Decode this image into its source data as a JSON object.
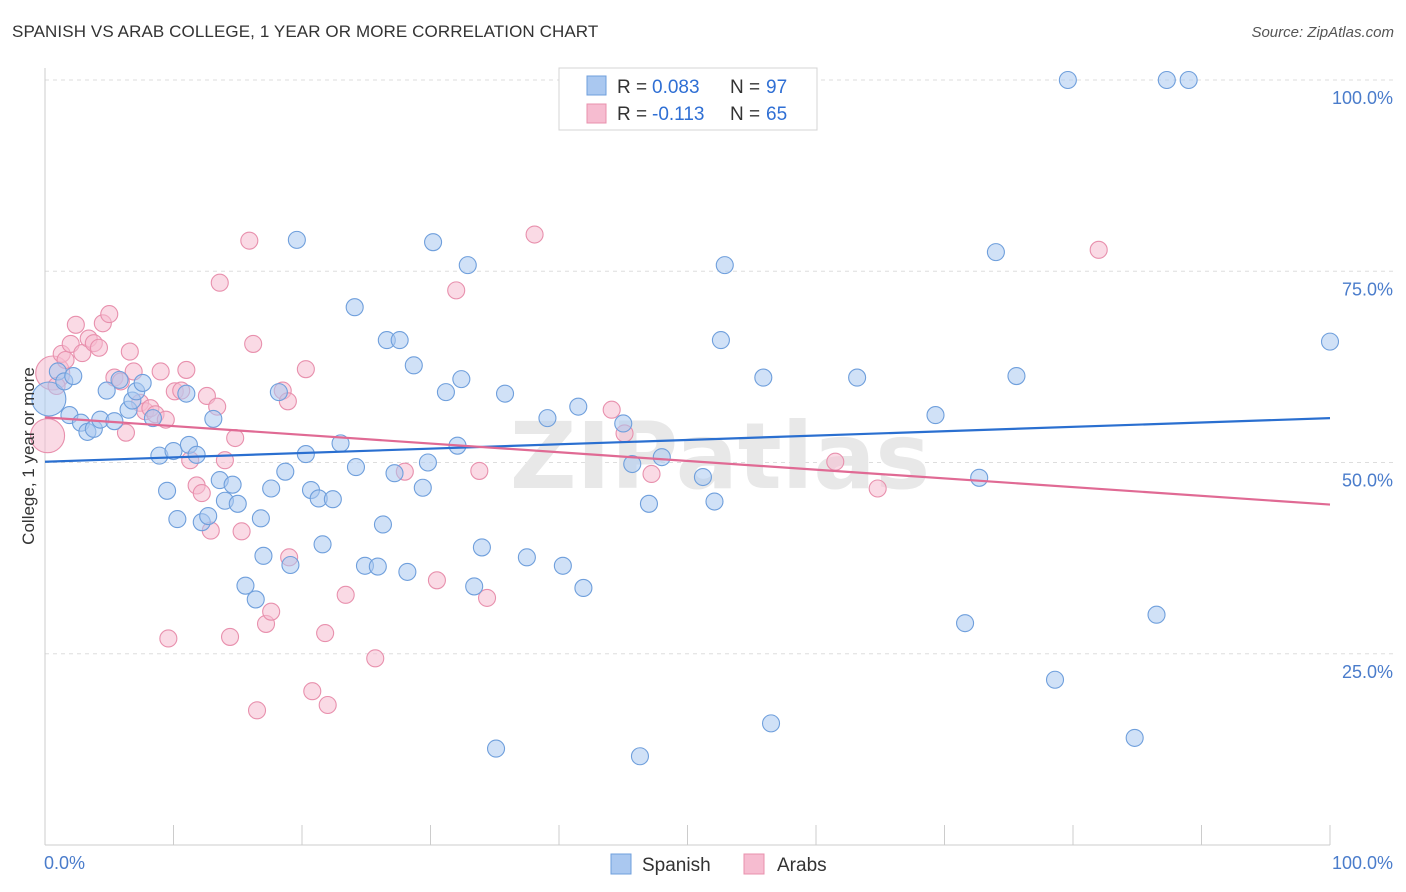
{
  "header": {
    "title": "SPANISH VS ARAB COLLEGE, 1 YEAR OR MORE CORRELATION CHART",
    "source": "Source: ZipAtlas.com"
  },
  "watermark": "ZIPatlas",
  "colors": {
    "spanish_fill": "#aac8f0",
    "spanish_stroke": "#6f9fdc",
    "spanish_line": "#2a6fd0",
    "arabs_fill": "#f6bcd0",
    "arabs_stroke": "#e890ad",
    "arabs_line": "#e06a94",
    "grid": "#dddddd",
    "label": "#4a7ccb"
  },
  "legend": {
    "r_label": "R =",
    "n_label": "N =",
    "rows": [
      {
        "name": "Spanish",
        "r": "0.083",
        "n": "97"
      },
      {
        "name": "Arabs",
        "r": "-0.113",
        "n": "65"
      }
    ]
  },
  "chart_data": {
    "type": "scatter",
    "title": "SPANISH VS ARAB COLLEGE, 1 YEAR OR MORE CORRELATION CHART",
    "xlabel": "",
    "ylabel": "College, 1 year or more",
    "xlim": [
      0,
      100
    ],
    "ylim": [
      0,
      100
    ],
    "x_tick_labels": [
      "0.0%",
      "100.0%"
    ],
    "y_tick_labels": [
      "25.0%",
      "50.0%",
      "75.0%",
      "100.0%"
    ],
    "y_ticks": [
      25,
      50,
      75,
      100
    ],
    "grid": true,
    "legend_position": "top-center",
    "series": [
      {
        "name": "Spanish",
        "r": 0.083,
        "n": 97,
        "trend": {
          "x": [
            0,
            100
          ],
          "y": [
            50.1,
            55.8
          ]
        },
        "points": [
          [
            0.3,
            58.3
          ],
          [
            1.0,
            61.9
          ],
          [
            1.5,
            60.6
          ],
          [
            1.9,
            56.2
          ],
          [
            2.2,
            61.3
          ],
          [
            2.8,
            55.2
          ],
          [
            3.3,
            54.0
          ],
          [
            3.8,
            54.4
          ],
          [
            4.3,
            55.6
          ],
          [
            4.8,
            59.4
          ],
          [
            5.4,
            55.4
          ],
          [
            5.8,
            60.8
          ],
          [
            6.5,
            56.9
          ],
          [
            6.8,
            58.1
          ],
          [
            7.1,
            59.3
          ],
          [
            7.6,
            60.4
          ],
          [
            8.4,
            55.8
          ],
          [
            8.9,
            50.9
          ],
          [
            9.5,
            46.3
          ],
          [
            10.0,
            51.5
          ],
          [
            10.3,
            42.6
          ],
          [
            11.0,
            59.0
          ],
          [
            11.2,
            52.3
          ],
          [
            11.8,
            51.0
          ],
          [
            12.2,
            42.2
          ],
          [
            12.7,
            43.0
          ],
          [
            13.1,
            55.7
          ],
          [
            13.6,
            47.7
          ],
          [
            14.0,
            45.0
          ],
          [
            14.6,
            47.1
          ],
          [
            15.0,
            44.6
          ],
          [
            15.6,
            33.9
          ],
          [
            16.4,
            32.1
          ],
          [
            16.8,
            42.7
          ],
          [
            17.0,
            37.8
          ],
          [
            17.6,
            46.6
          ],
          [
            18.2,
            59.2
          ],
          [
            18.7,
            48.8
          ],
          [
            19.1,
            36.6
          ],
          [
            19.6,
            79.1
          ],
          [
            20.3,
            51.1
          ],
          [
            20.7,
            46.4
          ],
          [
            21.3,
            45.3
          ],
          [
            21.6,
            39.3
          ],
          [
            22.4,
            45.2
          ],
          [
            23.0,
            52.5
          ],
          [
            24.1,
            70.3
          ],
          [
            24.2,
            49.4
          ],
          [
            24.9,
            36.5
          ],
          [
            25.9,
            36.4
          ],
          [
            26.3,
            41.9
          ],
          [
            26.6,
            66.0
          ],
          [
            27.2,
            48.6
          ],
          [
            27.6,
            66.0
          ],
          [
            28.2,
            35.7
          ],
          [
            28.7,
            62.7
          ],
          [
            29.4,
            46.7
          ],
          [
            29.8,
            50.0
          ],
          [
            30.2,
            78.8
          ],
          [
            31.2,
            59.2
          ],
          [
            32.1,
            52.2
          ],
          [
            32.4,
            60.9
          ],
          [
            32.9,
            75.8
          ],
          [
            33.4,
            33.8
          ],
          [
            34.0,
            38.9
          ],
          [
            35.1,
            12.6
          ],
          [
            35.8,
            59.0
          ],
          [
            37.5,
            37.6
          ],
          [
            39.1,
            55.8
          ],
          [
            40.3,
            36.5
          ],
          [
            41.5,
            57.3
          ],
          [
            41.9,
            33.6
          ],
          [
            45.0,
            55.1
          ],
          [
            45.7,
            49.8
          ],
          [
            46.3,
            11.6
          ],
          [
            47.0,
            44.6
          ],
          [
            48.0,
            50.7
          ],
          [
            51.2,
            48.1
          ],
          [
            52.1,
            44.9
          ],
          [
            52.6,
            66.0
          ],
          [
            52.9,
            75.8
          ],
          [
            55.9,
            61.1
          ],
          [
            56.5,
            15.9
          ],
          [
            63.2,
            61.1
          ],
          [
            69.3,
            56.2
          ],
          [
            71.6,
            29.0
          ],
          [
            72.7,
            48.0
          ],
          [
            74.0,
            77.5
          ],
          [
            75.6,
            61.3
          ],
          [
            78.6,
            21.6
          ],
          [
            79.6,
            100.0
          ],
          [
            84.8,
            14.0
          ],
          [
            86.5,
            30.1
          ],
          [
            87.3,
            100.0
          ],
          [
            89.0,
            100.0
          ],
          [
            100.0,
            65.8
          ]
        ]
      },
      {
        "name": "Arabs",
        "r": -0.113,
        "n": 65,
        "trend": {
          "x": [
            0,
            100
          ],
          "y": [
            55.9,
            44.5
          ]
        },
        "points": [
          [
            0.2,
            53.5
          ],
          [
            0.6,
            61.7
          ],
          [
            0.9,
            60.0
          ],
          [
            1.3,
            64.2
          ],
          [
            1.6,
            63.4
          ],
          [
            2.0,
            65.5
          ],
          [
            2.4,
            68.0
          ],
          [
            2.9,
            64.3
          ],
          [
            3.4,
            66.2
          ],
          [
            3.8,
            65.6
          ],
          [
            4.2,
            65.0
          ],
          [
            4.5,
            68.2
          ],
          [
            5.0,
            69.4
          ],
          [
            5.4,
            61.1
          ],
          [
            5.9,
            60.6
          ],
          [
            6.3,
            53.9
          ],
          [
            6.6,
            64.5
          ],
          [
            6.9,
            61.9
          ],
          [
            7.4,
            57.8
          ],
          [
            7.8,
            56.7
          ],
          [
            8.2,
            57.1
          ],
          [
            8.6,
            56.3
          ],
          [
            9.0,
            61.9
          ],
          [
            9.4,
            55.6
          ],
          [
            9.6,
            27.0
          ],
          [
            10.1,
            59.3
          ],
          [
            10.6,
            59.4
          ],
          [
            11.0,
            62.1
          ],
          [
            11.3,
            50.3
          ],
          [
            11.8,
            47.0
          ],
          [
            12.2,
            46.0
          ],
          [
            12.6,
            58.7
          ],
          [
            12.9,
            41.1
          ],
          [
            13.4,
            57.3
          ],
          [
            13.6,
            73.5
          ],
          [
            14.0,
            50.3
          ],
          [
            14.4,
            27.2
          ],
          [
            14.8,
            53.2
          ],
          [
            15.3,
            41.0
          ],
          [
            15.9,
            79.0
          ],
          [
            16.2,
            65.5
          ],
          [
            16.5,
            17.6
          ],
          [
            17.2,
            28.9
          ],
          [
            17.6,
            30.5
          ],
          [
            18.5,
            59.4
          ],
          [
            18.9,
            58.0
          ],
          [
            19.0,
            37.6
          ],
          [
            20.3,
            62.2
          ],
          [
            20.8,
            20.1
          ],
          [
            21.8,
            27.7
          ],
          [
            22.0,
            18.3
          ],
          [
            23.4,
            32.7
          ],
          [
            25.7,
            24.4
          ],
          [
            28.0,
            48.8
          ],
          [
            30.5,
            34.6
          ],
          [
            32.0,
            72.5
          ],
          [
            33.8,
            48.9
          ],
          [
            34.4,
            32.3
          ],
          [
            38.1,
            79.8
          ],
          [
            44.1,
            56.9
          ],
          [
            45.1,
            53.8
          ],
          [
            47.2,
            48.5
          ],
          [
            61.5,
            50.1
          ],
          [
            64.8,
            46.6
          ],
          [
            82.0,
            77.8
          ]
        ]
      }
    ]
  }
}
